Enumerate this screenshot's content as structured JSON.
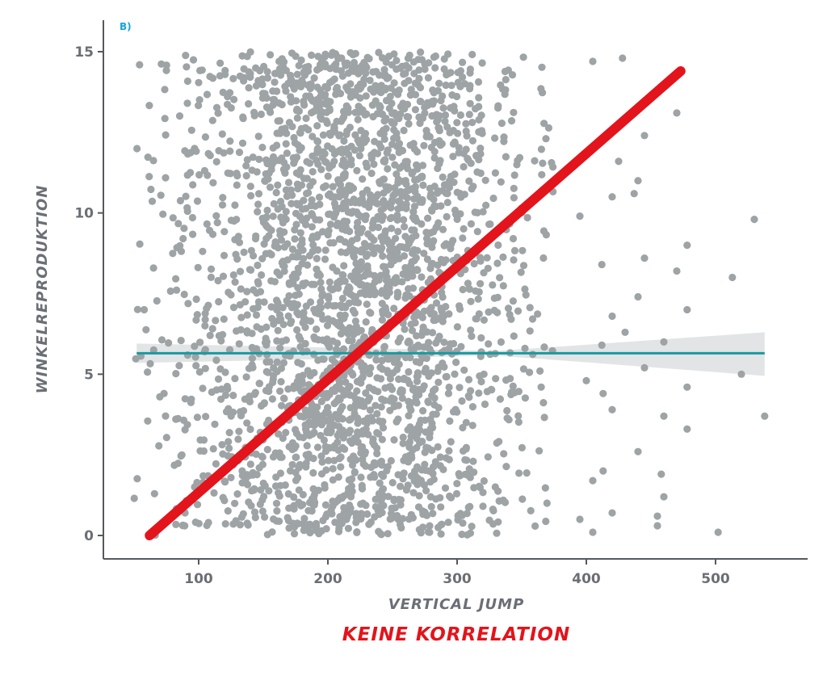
{
  "chart_data": {
    "type": "scatter",
    "panel_label": "B)",
    "xlabel": "VERTICAL JUMP",
    "ylabel": "WINKELREPRODUKTION",
    "caption": "KEINE KORRELATION",
    "xlim": [
      28,
      565
    ],
    "ylim": [
      -0.75,
      16
    ],
    "xticks": [
      100,
      200,
      300,
      400,
      500
    ],
    "yticks": [
      0,
      5,
      10,
      15
    ],
    "grid": false,
    "legend": "none",
    "point_count": 2700,
    "x_dense_range": [
      50,
      375
    ],
    "y_range": [
      0,
      15
    ],
    "outlier_points": [
      {
        "x": 405,
        "y": 14.7
      },
      {
        "x": 428,
        "y": 14.8
      },
      {
        "x": 470,
        "y": 13.1
      },
      {
        "x": 445,
        "y": 12.4
      },
      {
        "x": 425,
        "y": 11.6
      },
      {
        "x": 440,
        "y": 11.0
      },
      {
        "x": 420,
        "y": 10.5
      },
      {
        "x": 437,
        "y": 10.6
      },
      {
        "x": 395,
        "y": 9.9
      },
      {
        "x": 530,
        "y": 9.8
      },
      {
        "x": 478,
        "y": 9.0
      },
      {
        "x": 412,
        "y": 8.4
      },
      {
        "x": 445,
        "y": 8.6
      },
      {
        "x": 470,
        "y": 8.2
      },
      {
        "x": 513,
        "y": 8.0
      },
      {
        "x": 440,
        "y": 7.4
      },
      {
        "x": 478,
        "y": 7.0
      },
      {
        "x": 420,
        "y": 6.8
      },
      {
        "x": 430,
        "y": 6.3
      },
      {
        "x": 460,
        "y": 6.0
      },
      {
        "x": 412,
        "y": 5.9
      },
      {
        "x": 445,
        "y": 5.2
      },
      {
        "x": 400,
        "y": 4.8
      },
      {
        "x": 520,
        "y": 5.0
      },
      {
        "x": 478,
        "y": 4.6
      },
      {
        "x": 413,
        "y": 4.4
      },
      {
        "x": 420,
        "y": 3.9
      },
      {
        "x": 538,
        "y": 3.7
      },
      {
        "x": 460,
        "y": 3.7
      },
      {
        "x": 478,
        "y": 3.3
      },
      {
        "x": 440,
        "y": 2.6
      },
      {
        "x": 413,
        "y": 2.0
      },
      {
        "x": 458,
        "y": 1.9
      },
      {
        "x": 405,
        "y": 1.7
      },
      {
        "x": 460,
        "y": 1.2
      },
      {
        "x": 455,
        "y": 0.6
      },
      {
        "x": 420,
        "y": 0.7
      },
      {
        "x": 455,
        "y": 0.3
      },
      {
        "x": 502,
        "y": 0.1
      },
      {
        "x": 405,
        "y": 0.1
      },
      {
        "x": 395,
        "y": 0.5
      }
    ],
    "fitted_line": {
      "x": [
        52,
        538
      ],
      "y": [
        5.65,
        5.65
      ]
    },
    "confidence_band": {
      "x": [
        52,
        330,
        538
      ],
      "upper": [
        5.95,
        5.72,
        6.3
      ],
      "lower": [
        5.35,
        5.58,
        4.95
      ]
    },
    "annotation_line": {
      "x": [
        62,
        473
      ],
      "y": [
        0.0,
        14.4
      ]
    },
    "colors": {
      "points": "#9ea3a6",
      "fitted_line": "#1a9aa0",
      "confidence_band": "#dfe1e3",
      "annotation_line": "#e3141b",
      "axis": "#55595d",
      "tick_text": "#6b6f75",
      "panel_label": "#1aa3d8",
      "caption": "#e3141b"
    }
  }
}
